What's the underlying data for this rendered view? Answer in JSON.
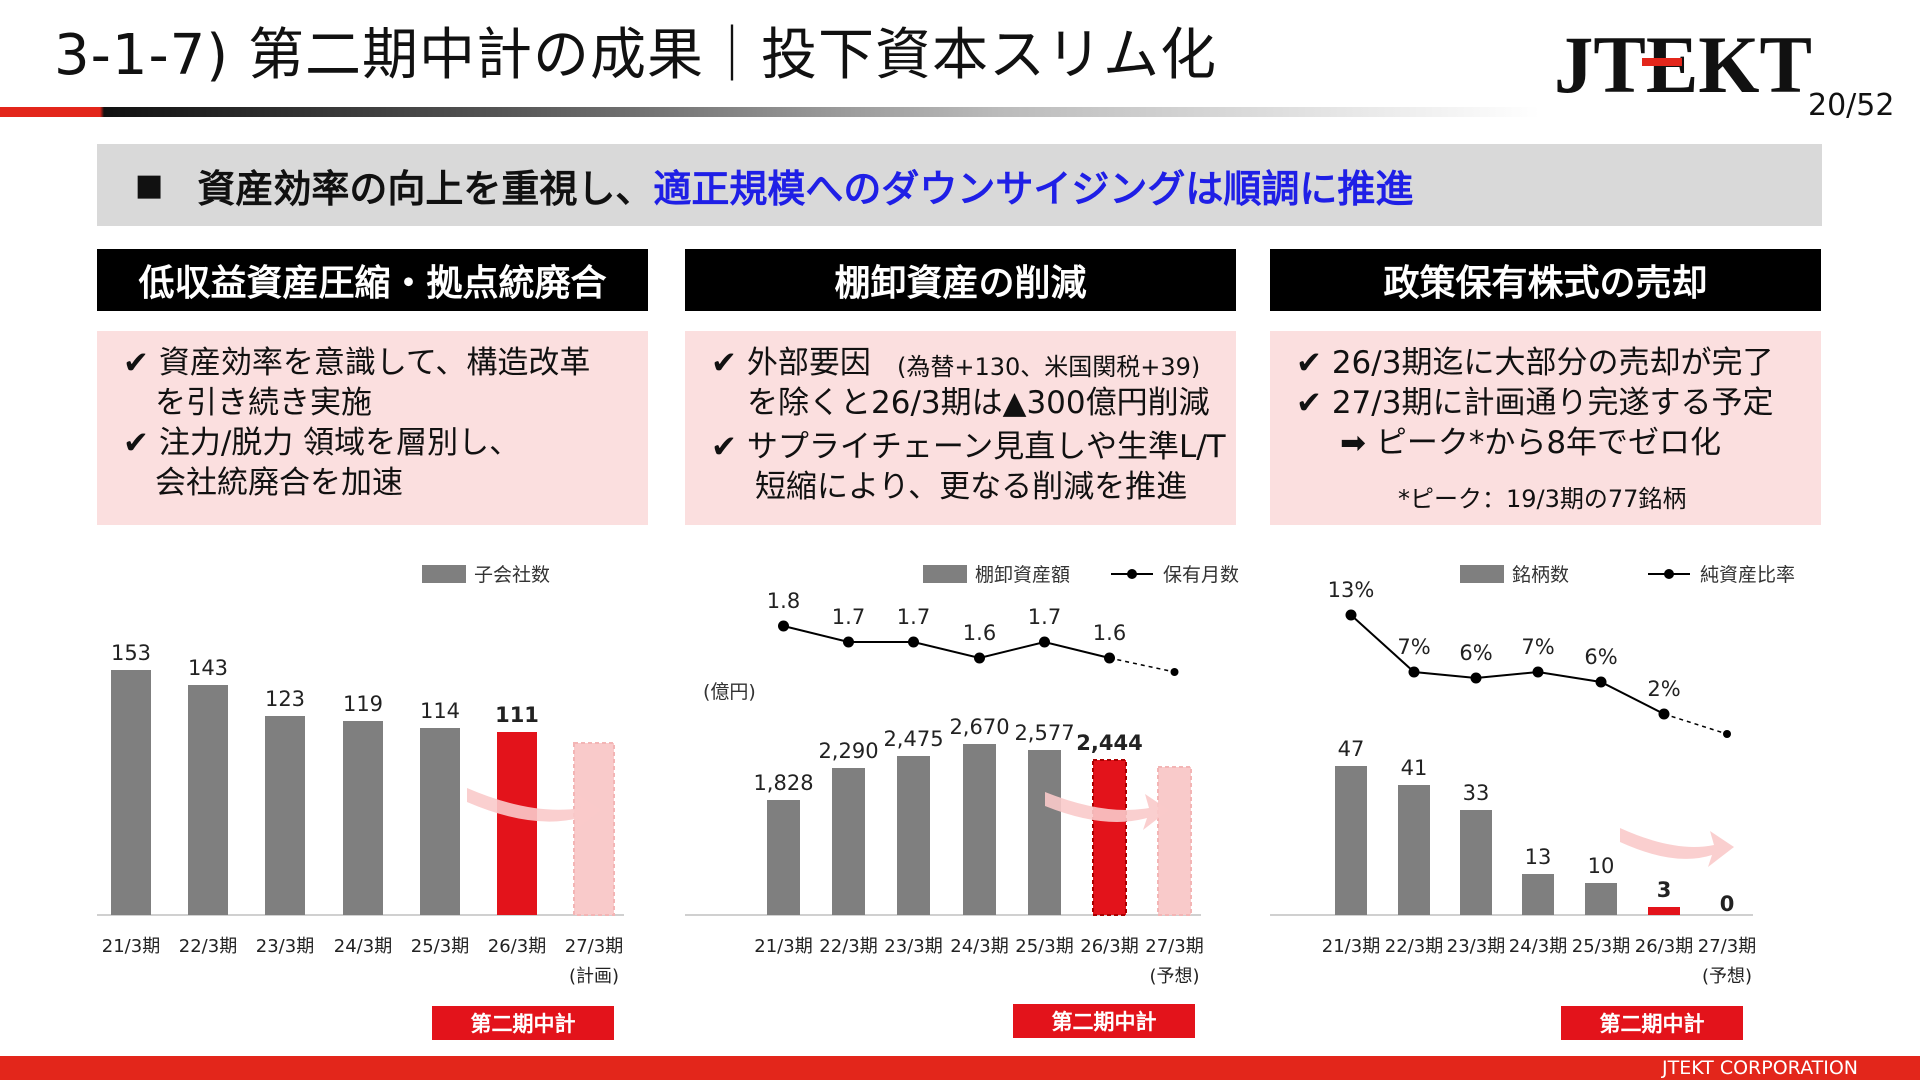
{
  "header": {
    "title": "3-1-7) 第二期中計の成果｜投下資本スリム化",
    "logo": "JTEKT",
    "page": "20/52"
  },
  "headline": {
    "bullet": "■",
    "text": "資産効率の向上を重視し、",
    "highlight": "適正規模へのダウンサイジングは順調に推進"
  },
  "sections": [
    {
      "title": "低収益資産圧縮・拠点統廃合",
      "lines": [
        "✔ 資産効率を意識して、構造改革",
        "を引き続き実施",
        "✔ 注力/脱力 領域を層別し、",
        "会社統廃合を加速"
      ]
    },
    {
      "title": "棚卸資産の削減",
      "lines": [
        "✔ 外部要因",
        "(為替+130、米国関税+39)",
        "を除くと26/3期は▲300億円削減",
        "✔ サプライチェーン見直しや生準L/T",
        "短縮により、更なる削減を推進"
      ]
    },
    {
      "title": "政策保有株式の売却",
      "lines": [
        "✔ 26/3期迄に大部分の売却が完了",
        "✔ 27/3期に計画通り完遂する予定",
        "➡ ピーク*から8年でゼロ化",
        "*ピーク：19/3期の77銘柄"
      ]
    }
  ],
  "badges": [
    "第二期中計",
    "第二期中計",
    "第二期中計"
  ],
  "footer": "JTEKT CORPORATION",
  "colors": {
    "bar": "#7f7f7f",
    "highlight": "#e3131b",
    "forecast": "#f9caca",
    "line": "#000000",
    "accent_blue": "#1f1fe6"
  },
  "chart_data": [
    {
      "type": "bar",
      "legend": [
        "子会社数"
      ],
      "categories": [
        "21/3期",
        "22/3期",
        "23/3期",
        "24/3期",
        "25/3期",
        "26/3期",
        "27/3期"
      ],
      "category_notes": [
        "",
        "",
        "",
        "",
        "",
        "",
        "(計画)"
      ],
      "series": [
        {
          "name": "子会社数",
          "values": [
            153,
            143,
            123,
            119,
            114,
            111,
            101
          ]
        }
      ],
      "labels": [
        "153",
        "143",
        "123",
        "119",
        "114",
        "111",
        ""
      ],
      "ylim": [
        0,
        160
      ]
    },
    {
      "type": "bar",
      "legend": [
        "棚卸資産額",
        "保有月数"
      ],
      "unit": "(億円)",
      "categories": [
        "21/3期",
        "22/3期",
        "23/3期",
        "24/3期",
        "25/3期",
        "26/3期",
        "27/3期"
      ],
      "category_notes": [
        "",
        "",
        "",
        "",
        "",
        "",
        "(予想)"
      ],
      "series": [
        {
          "name": "棚卸資産額",
          "values": [
            1828,
            2290,
            2475,
            2670,
            2577,
            2444,
            2333
          ]
        },
        {
          "name": "保有月数",
          "values": [
            1.8,
            1.7,
            1.7,
            1.6,
            1.7,
            1.6,
            1.5
          ]
        }
      ],
      "labels": [
        "1,828",
        "2,290",
        "2,475",
        "2,670",
        "2,577",
        "2,444",
        ""
      ],
      "line_labels": [
        "1.8",
        "1.7",
        "1.7",
        "1.6",
        "1.7",
        "1.6",
        ""
      ],
      "ylim": [
        0,
        2800
      ]
    },
    {
      "type": "bar",
      "legend": [
        "銘柄数",
        "純資産比率"
      ],
      "categories": [
        "21/3期",
        "22/3期",
        "23/3期",
        "24/3期",
        "25/3期",
        "26/3期",
        "27/3期"
      ],
      "category_notes": [
        "",
        "",
        "",
        "",
        "",
        "",
        "(予想)"
      ],
      "series": [
        {
          "name": "銘柄数",
          "values": [
            47,
            41,
            33,
            13,
            10,
            3,
            0
          ]
        },
        {
          "name": "純資産比率",
          "values": [
            13,
            7,
            6,
            7,
            6,
            2,
            0
          ]
        }
      ],
      "labels": [
        "47",
        "41",
        "33",
        "13",
        "10",
        "3",
        "0"
      ],
      "line_labels": [
        "13%",
        "7%",
        "6%",
        "7%",
        "6%",
        "2%",
        ""
      ],
      "ylim": [
        0,
        60
      ]
    }
  ]
}
